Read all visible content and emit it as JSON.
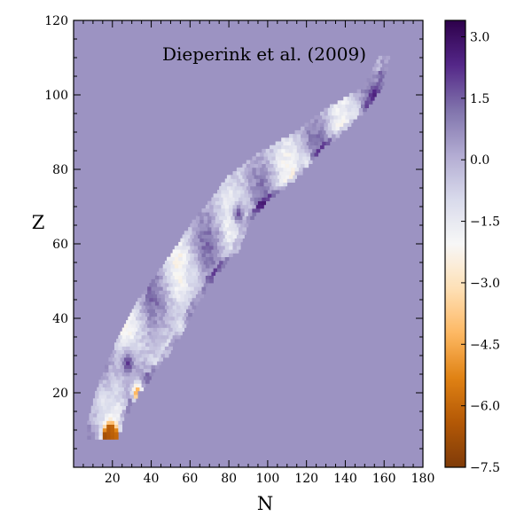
{
  "chart_data": {
    "type": "heatmap",
    "annotation": "Dieperink et al. (2009)",
    "xlabel": "N",
    "ylabel": "Z",
    "xlim": [
      0,
      180
    ],
    "ylim": [
      0,
      120
    ],
    "x_ticks": [
      20,
      40,
      60,
      80,
      100,
      120,
      140,
      160,
      180
    ],
    "y_ticks": [
      20,
      40,
      60,
      80,
      100,
      120
    ],
    "background_value": 0.6,
    "colorbar": {
      "range": [
        -7.5,
        3.4
      ],
      "ticks": [
        3.0,
        1.5,
        0.0,
        -1.5,
        -3.0,
        -4.5,
        -6.0,
        -7.5
      ],
      "tick_labels": [
        "3.0",
        "1.5",
        "0.0",
        "−1.5",
        "−3.0",
        "−4.5",
        "−6.0",
        "−7.5"
      ],
      "colormap": "PuOr",
      "colors": [
        "#7f3b08",
        "#b35806",
        "#e08214",
        "#fdb863",
        "#fee0b6",
        "#f7f7f7",
        "#d8daeb",
        "#b2abd2",
        "#8073ac",
        "#542788",
        "#2d004b"
      ]
    },
    "band": [
      {
        "z": 8,
        "n_min": 8,
        "n_max": 22
      },
      {
        "z": 12,
        "n_min": 8,
        "n_max": 25
      },
      {
        "z": 20,
        "n_min": 12,
        "n_max": 33
      },
      {
        "z": 28,
        "n_min": 18,
        "n_max": 45
      },
      {
        "z": 36,
        "n_min": 25,
        "n_max": 55
      },
      {
        "z": 44,
        "n_min": 33,
        "n_max": 63
      },
      {
        "z": 52,
        "n_min": 44,
        "n_max": 73
      },
      {
        "z": 58,
        "n_min": 52,
        "n_max": 84
      },
      {
        "z": 66,
        "n_min": 62,
        "n_max": 90
      },
      {
        "z": 72,
        "n_min": 72,
        "n_max": 100
      },
      {
        "z": 78,
        "n_min": 80,
        "n_max": 115
      },
      {
        "z": 84,
        "n_min": 95,
        "n_max": 125
      },
      {
        "z": 90,
        "n_min": 115,
        "n_max": 138
      },
      {
        "z": 96,
        "n_min": 130,
        "n_max": 150
      },
      {
        "z": 102,
        "n_min": 150,
        "n_max": 158
      },
      {
        "z": 110,
        "n_min": 158,
        "n_max": 162
      }
    ],
    "features": [
      {
        "n": 18,
        "z": 8,
        "value": -7.2,
        "label": "orange-dark"
      },
      {
        "n": 20,
        "z": 9,
        "value": -5.5,
        "label": "orange"
      },
      {
        "n": 33,
        "z": 20,
        "value": -5.0,
        "label": "orange"
      },
      {
        "n": 15,
        "z": 18,
        "value": -1.5,
        "label": "white"
      },
      {
        "n": 28,
        "z": 28,
        "value": 2.2,
        "label": "purple"
      },
      {
        "n": 55,
        "z": 38,
        "value": -1.5,
        "label": "white"
      },
      {
        "n": 72,
        "z": 45,
        "value": 2.8,
        "label": "dark-purple"
      },
      {
        "n": 62,
        "z": 52,
        "value": -1.2,
        "label": "white"
      },
      {
        "n": 95,
        "z": 62,
        "value": -1.3,
        "label": "white"
      },
      {
        "n": 85,
        "z": 68,
        "value": 1.8,
        "label": "purple"
      },
      {
        "n": 120,
        "z": 82,
        "value": -1.6,
        "label": "white"
      },
      {
        "n": 145,
        "z": 95,
        "value": -1.5,
        "label": "white"
      },
      {
        "n": 155,
        "z": 100,
        "value": 2.5,
        "label": "dark-purple"
      }
    ]
  }
}
